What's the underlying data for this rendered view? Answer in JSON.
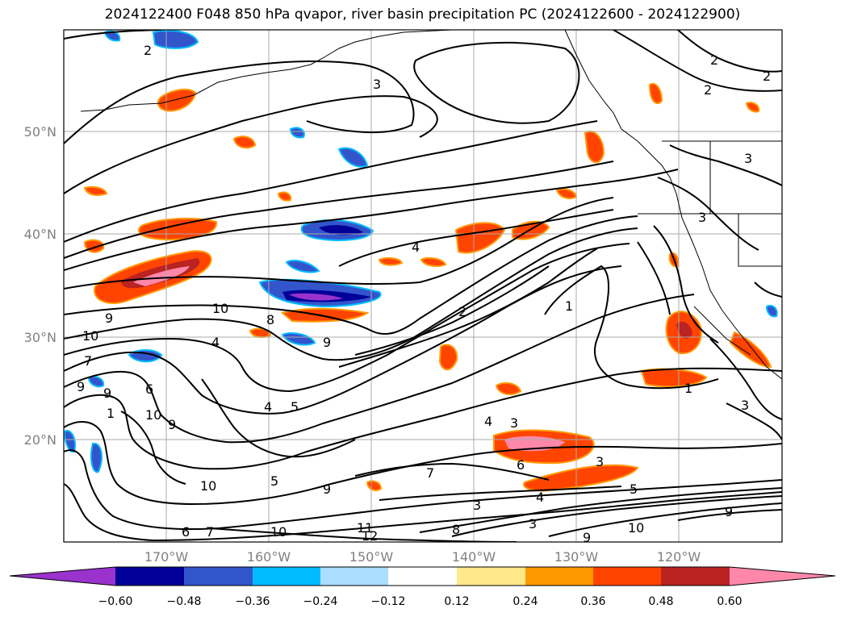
{
  "title": "2024122400 F048 850 hPa qvapor, river basin precipitation PC (2024122600 - 2024122900)",
  "map": {
    "lat_labels": [
      "50°N",
      "40°N",
      "30°N",
      "20°N"
    ],
    "lon_labels": [
      "170°W",
      "160°W",
      "150°W",
      "140°W",
      "130°W",
      "120°W"
    ],
    "contour_labels": [
      "2",
      "3",
      "2",
      "2",
      "2",
      "4",
      "3",
      "1",
      "2",
      "10",
      "10",
      "9",
      "9",
      "8",
      "7",
      "4",
      "9",
      "9",
      "6",
      "4",
      "5",
      "4",
      "3",
      "1",
      "3",
      "5",
      "9",
      "10",
      "10",
      "12",
      "11",
      "10",
      "9",
      "6",
      "3",
      "3",
      "4",
      "7",
      "9",
      "10",
      "8",
      "9",
      "6",
      "7",
      "5",
      "3",
      "1",
      "3"
    ]
  },
  "colorbar": {
    "colors": [
      "#9933cc",
      "#000099",
      "#3355cc",
      "#00bbff",
      "#aaddff",
      "#ffffff",
      "#ffe88a",
      "#ff9900",
      "#ff4400",
      "#bb2222",
      "#ff88aa"
    ],
    "ticks": [
      "−0.60",
      "−0.48",
      "−0.36",
      "−0.24",
      "−0.12",
      "0.12",
      "0.24",
      "0.36",
      "0.48",
      "0.60"
    ]
  }
}
